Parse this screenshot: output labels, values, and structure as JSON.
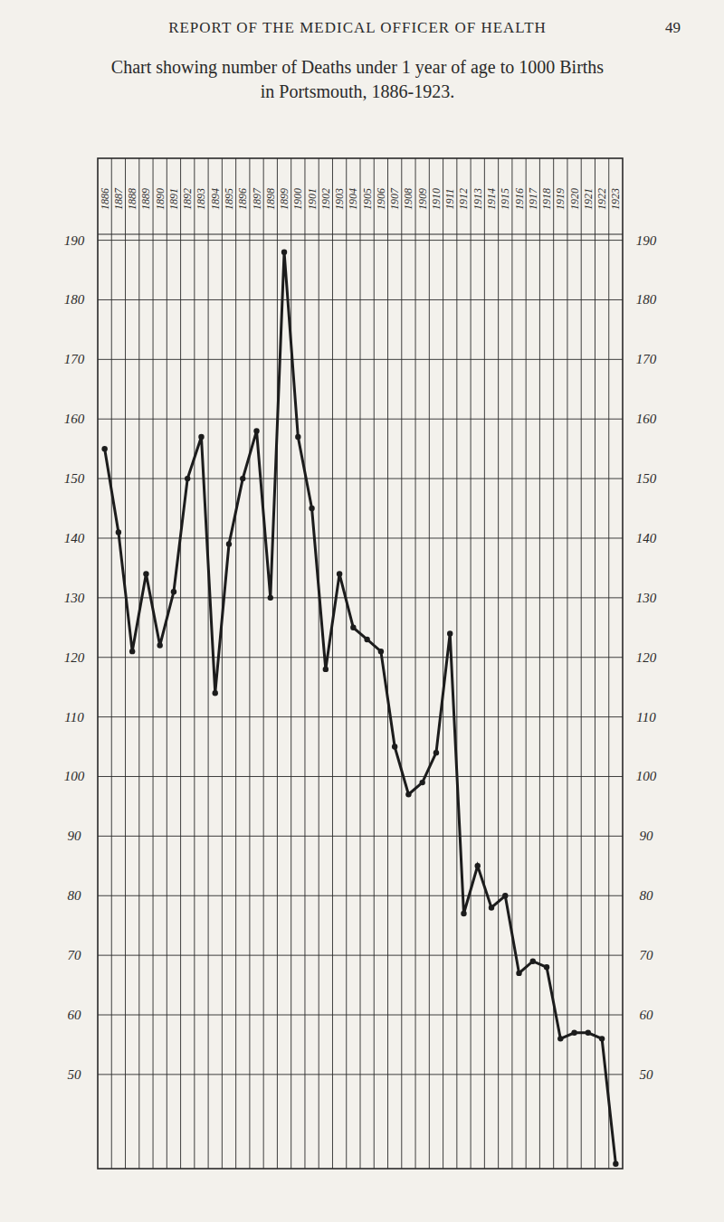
{
  "page_header": {
    "running_head": "REPORT OF THE MEDICAL OFFICER OF HEALTH",
    "page_number": 49
  },
  "chart_data": {
    "type": "line",
    "title": "Chart showing number of Deaths under 1 year of age to 1000 Births",
    "subtitle": "in Portsmouth, 1886-1923.",
    "categories": [
      "1886",
      "1887",
      "1888",
      "1889",
      "1890",
      "1891",
      "1892",
      "1893",
      "1894",
      "1895",
      "1896",
      "1897",
      "1898",
      "1899",
      "1900",
      "1901",
      "1902",
      "1903",
      "1904",
      "1905",
      "1906",
      "1907",
      "1908",
      "1909",
      "1910",
      "1911",
      "1912",
      "1913",
      "1914",
      "1915",
      "1916",
      "1917",
      "1918",
      "1919",
      "1920",
      "1921",
      "1922",
      "1923"
    ],
    "values": [
      155,
      141,
      121,
      134,
      122,
      131,
      150,
      157,
      114,
      139,
      150,
      158,
      130,
      188,
      157,
      145,
      118,
      134,
      125,
      123,
      121,
      105,
      97,
      99,
      104,
      124,
      77,
      85,
      78,
      80,
      67,
      69,
      68,
      56,
      57,
      57,
      56,
      35
    ],
    "color": "#1c1c1c",
    "marker": "circle",
    "ylim": [
      34.5,
      191
    ],
    "yticks": [
      50,
      60,
      70,
      80,
      90,
      100,
      110,
      120,
      130,
      140,
      150,
      160,
      170,
      180,
      190
    ],
    "grid": true
  }
}
